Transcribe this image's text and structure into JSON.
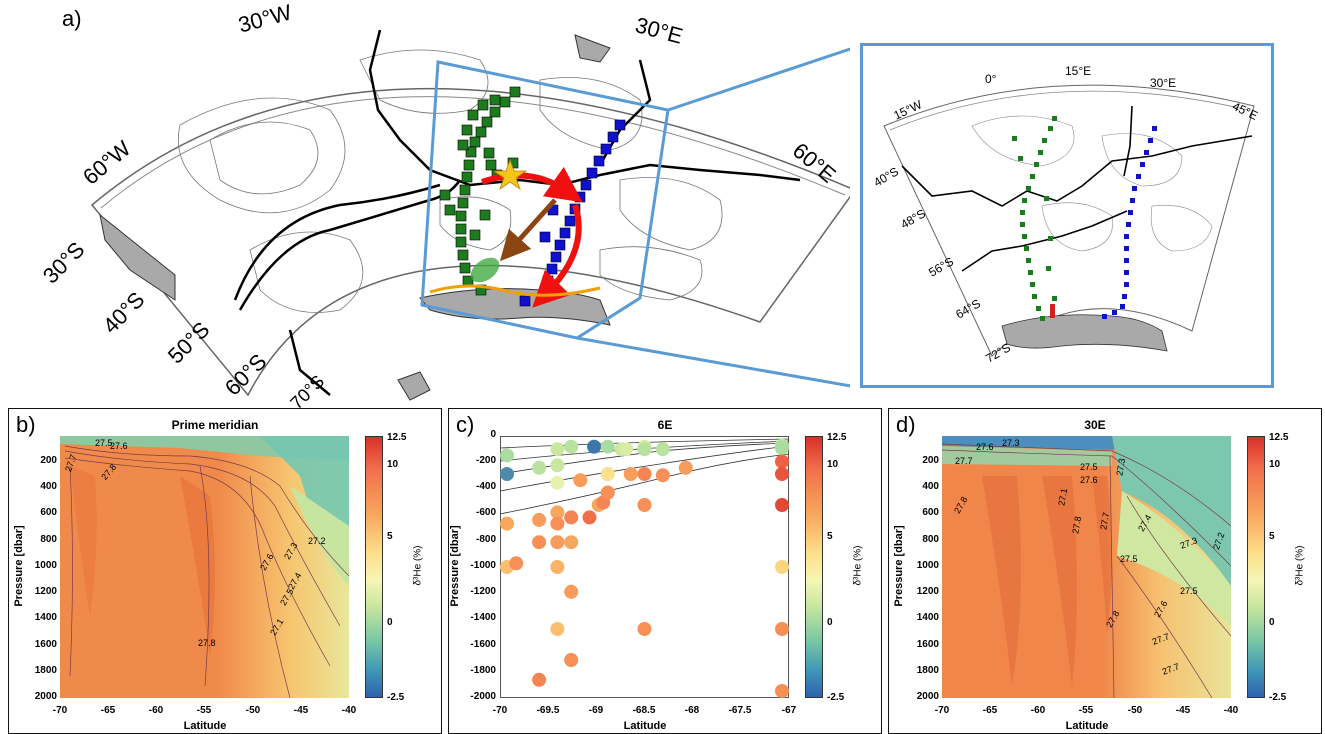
{
  "panel_a": {
    "label": "a)",
    "main_map_lon_labels": [
      "30°W",
      "30°E",
      "60°W",
      "60°E"
    ],
    "main_map_lat_labels": [
      "30°S",
      "40°S",
      "50°S",
      "60°S",
      "70°S"
    ],
    "inset_lon_labels": [
      "15°W",
      "0°",
      "15°E",
      "30°E",
      "45°E"
    ],
    "inset_lat_labels": [
      "40°S",
      "48°S",
      "56°S",
      "64°S",
      "72°S"
    ],
    "colors": {
      "green_stations": "#1e7a1e",
      "blue_stations": "#1010d0",
      "red_arrow": "#f01010",
      "brown_arrow": "#8b4513",
      "orange_line": "#f0a000",
      "star": "#f5c518",
      "zoom_box": "#5b9bd5",
      "land": "#a9a9a9"
    }
  },
  "panels": [
    {
      "label": "b)",
      "title": "Prime meridian",
      "ylabel": "Pressure [dbar]",
      "xlabel": "Latitude",
      "xticks": [
        "-70",
        "-65",
        "-60",
        "-55",
        "-50",
        "-45",
        "-40"
      ],
      "yticks": [
        "200",
        "400",
        "600",
        "800",
        "1000",
        "1200",
        "1400",
        "1600",
        "1800",
        "2000"
      ],
      "colorbar_ticks": [
        "12.5",
        "10",
        "5",
        "0",
        "-2.5"
      ],
      "colorbar_label": "δ³He (%)",
      "contour_labels": [
        "27.7",
        "27.6",
        "27.5",
        "27.8",
        "27.2",
        "27.3",
        "27.4",
        "27.5",
        "27.6",
        "27.1",
        "27.8"
      ]
    },
    {
      "label": "c)",
      "title": "6E",
      "ylabel": "Pressure [dbar]",
      "xlabel": "Latitude",
      "xticks": [
        "-70",
        "-69.5",
        "-69",
        "-68.5",
        "-68",
        "-67.5",
        "-67"
      ],
      "yticks": [
        "0",
        "-200",
        "-400",
        "-600",
        "-800",
        "-1000",
        "-1200",
        "-1400",
        "-1600",
        "-1800",
        "-2000"
      ],
      "colorbar_ticks": [
        "12.5",
        "10",
        "5",
        "0",
        "-2.5"
      ],
      "colorbar_label": "δ³He (%)"
    },
    {
      "label": "d)",
      "title": "30E",
      "ylabel": "Pressure [dbar]",
      "xlabel": "Latitude",
      "xticks": [
        "-70",
        "-65",
        "-60",
        "-55",
        "-50",
        "-45",
        "-40"
      ],
      "yticks": [
        "200",
        "400",
        "600",
        "800",
        "1000",
        "1200",
        "1400",
        "1600",
        "1800",
        "2000"
      ],
      "colorbar_ticks": [
        "12.5",
        "10",
        "5",
        "0",
        "-2.5"
      ],
      "colorbar_label": "δ³He (%)",
      "contour_labels": [
        "27.7",
        "27.6",
        "27.3",
        "27.5",
        "27.6",
        "27.3",
        "27.8",
        "27.1",
        "27.8",
        "27.7",
        "27.4",
        "27.3",
        "27.2",
        "27.5",
        "27.5",
        "27.6",
        "27.8",
        "27.7",
        "27.7"
      ]
    }
  ],
  "chart_data": [
    {
      "type": "scatter",
      "panel": "c)",
      "title": "6E",
      "xlabel": "Latitude",
      "ylabel": "Pressure [dbar]",
      "xlim": [
        -70,
        -67
      ],
      "ylim": [
        -2000,
        0
      ],
      "colorbar": {
        "label": "δ³He (%)",
        "range": [
          -2.5,
          12.5
        ]
      },
      "points": [
        {
          "x": -70.0,
          "y": -100,
          "v": 1.5
        },
        {
          "x": -70.0,
          "y": -250,
          "v": -1.5
        },
        {
          "x": -70.0,
          "y": -650,
          "v": 7.5
        },
        {
          "x": -70.0,
          "y": -1000,
          "v": 6.5
        },
        {
          "x": -69.9,
          "y": -970,
          "v": 8.5
        },
        {
          "x": -69.65,
          "y": -200,
          "v": 2.0
        },
        {
          "x": -69.65,
          "y": -620,
          "v": 8.0
        },
        {
          "x": -69.65,
          "y": -800,
          "v": 8.5
        },
        {
          "x": -69.65,
          "y": -1910,
          "v": 9.0
        },
        {
          "x": -69.45,
          "y": -50,
          "v": 2.5
        },
        {
          "x": -69.45,
          "y": -180,
          "v": 2.5
        },
        {
          "x": -69.45,
          "y": -320,
          "v": 3.5
        },
        {
          "x": -69.45,
          "y": -560,
          "v": 7.5
        },
        {
          "x": -69.45,
          "y": -650,
          "v": 8.5
        },
        {
          "x": -69.45,
          "y": -800,
          "v": 8.0
        },
        {
          "x": -69.45,
          "y": -1000,
          "v": 7.0
        },
        {
          "x": -69.45,
          "y": -1500,
          "v": 6.5
        },
        {
          "x": -69.3,
          "y": -30,
          "v": 2.0
        },
        {
          "x": -69.3,
          "y": -600,
          "v": 9.0
        },
        {
          "x": -69.3,
          "y": -800,
          "v": 7.5
        },
        {
          "x": -69.3,
          "y": -1200,
          "v": 8.0
        },
        {
          "x": -69.3,
          "y": -1750,
          "v": 8.5
        },
        {
          "x": -69.2,
          "y": -300,
          "v": 8.0
        },
        {
          "x": -69.1,
          "y": -600,
          "v": 10.0
        },
        {
          "x": -69.05,
          "y": -30,
          "v": -2.0
        },
        {
          "x": -69.0,
          "y": -500,
          "v": 7.5
        },
        {
          "x": -68.95,
          "y": -480,
          "v": 9.0
        },
        {
          "x": -68.9,
          "y": -30,
          "v": 1.5
        },
        {
          "x": -68.9,
          "y": -250,
          "v": 5.0
        },
        {
          "x": -68.9,
          "y": -400,
          "v": 8.5
        },
        {
          "x": -68.75,
          "y": -50,
          "v": 2.5
        },
        {
          "x": -68.7,
          "y": -50,
          "v": 3.0
        },
        {
          "x": -68.65,
          "y": -250,
          "v": 8.0
        },
        {
          "x": -68.5,
          "y": -30,
          "v": 3.0
        },
        {
          "x": -68.5,
          "y": -50,
          "v": 2.0
        },
        {
          "x": -68.5,
          "y": -250,
          "v": 9.0
        },
        {
          "x": -68.5,
          "y": -500,
          "v": 8.5
        },
        {
          "x": -68.5,
          "y": -1500,
          "v": 8.5
        },
        {
          "x": -68.3,
          "y": -50,
          "v": 2.0
        },
        {
          "x": -68.3,
          "y": -260,
          "v": 8.5
        },
        {
          "x": -68.05,
          "y": -200,
          "v": 8.0
        },
        {
          "x": -67.0,
          "y": -20,
          "v": 2.0
        },
        {
          "x": -67.0,
          "y": -40,
          "v": 1.5
        },
        {
          "x": -67.0,
          "y": -150,
          "v": 10.5
        },
        {
          "x": -67.0,
          "y": -250,
          "v": 11.0
        },
        {
          "x": -67.0,
          "y": -500,
          "v": 11.5
        },
        {
          "x": -67.0,
          "y": -1000,
          "v": 5.5
        },
        {
          "x": -67.0,
          "y": -1500,
          "v": 8.5
        },
        {
          "x": -67.0,
          "y": -2000,
          "v": 8.5
        }
      ]
    }
  ]
}
